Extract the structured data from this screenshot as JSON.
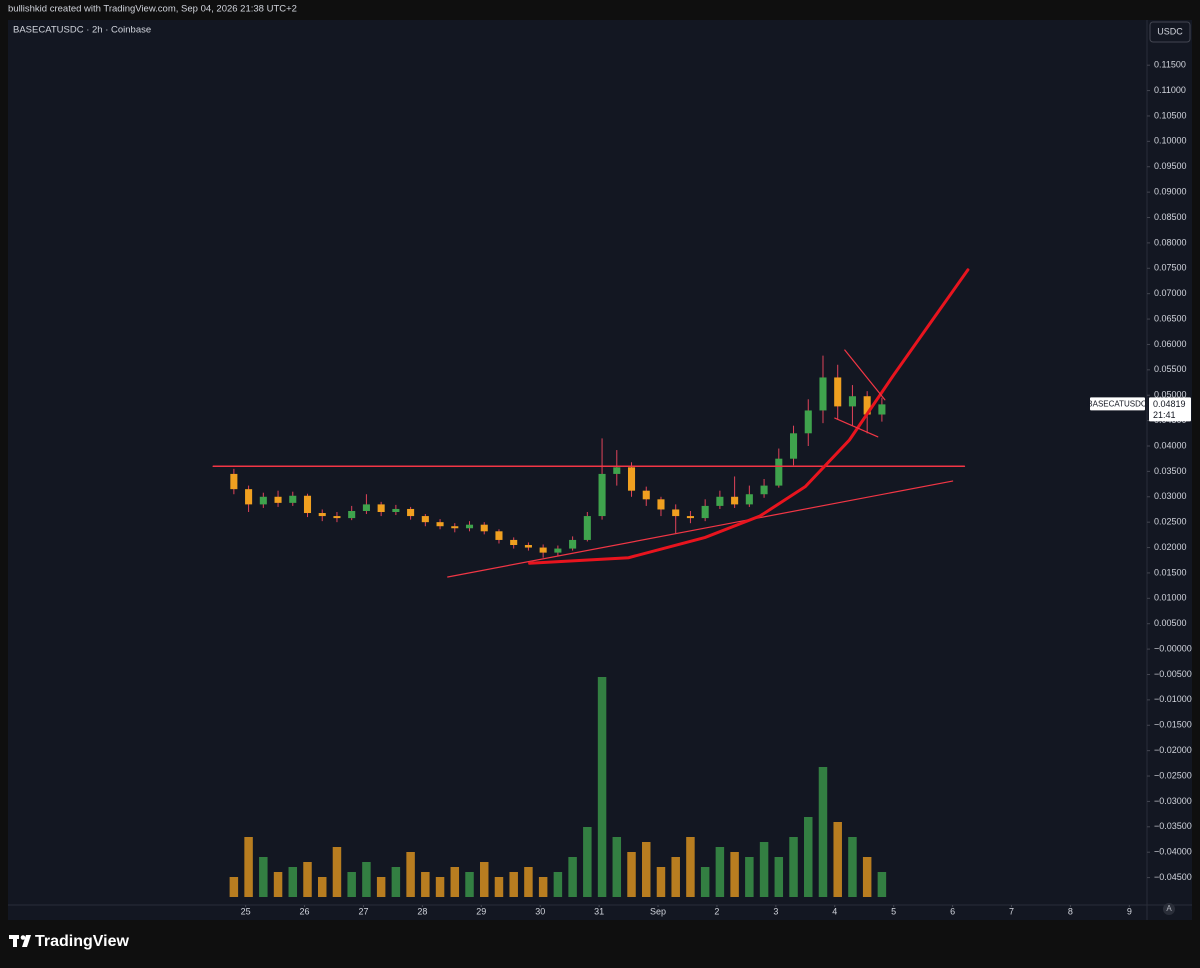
{
  "header": {
    "credit": "bullishkid created with TradingView.com, Sep 04, 2026 21:38 UTC+2"
  },
  "footer": {
    "brand": "TradingView",
    "auto_button": "A"
  },
  "chart_data": {
    "type": "candlestick",
    "title": "BASECATUSDC · 2h · Coinbase",
    "currency": "USDC",
    "up_color": "#3fa34d",
    "down_color": "#f0a020",
    "wick_color": "#e0445a",
    "x": [
      -0.2,
      0.05,
      0.3,
      0.55,
      0.8,
      1.05,
      1.3,
      1.55,
      1.8,
      2.05,
      2.3,
      2.55,
      2.8,
      3.05,
      3.3,
      3.55,
      3.8,
      4.05,
      4.3,
      4.55,
      4.8,
      5.05,
      5.3,
      5.55,
      5.8,
      6.05,
      6.3,
      6.55,
      6.8,
      7.05,
      7.3,
      7.55,
      7.8,
      8.05,
      8.3,
      8.55,
      8.8,
      9.05,
      9.3,
      9.55,
      9.8,
      10.05,
      10.3,
      10.55,
      10.8
    ],
    "open": [
      0.0345,
      0.0315,
      0.0285,
      0.03,
      0.0288,
      0.0302,
      0.0268,
      0.0262,
      0.0258,
      0.0272,
      0.0285,
      0.027,
      0.0276,
      0.0262,
      0.025,
      0.0242,
      0.0238,
      0.0245,
      0.0232,
      0.0215,
      0.0205,
      0.02,
      0.019,
      0.0198,
      0.0215,
      0.0262,
      0.0345,
      0.0358,
      0.0312,
      0.0295,
      0.0275,
      0.0262,
      0.0258,
      0.0282,
      0.03,
      0.0285,
      0.0305,
      0.0322,
      0.0375,
      0.0425,
      0.047,
      0.0535,
      0.0478,
      0.0498,
      0.0462
    ],
    "high": [
      0.0355,
      0.0322,
      0.0308,
      0.0312,
      0.031,
      0.0306,
      0.0275,
      0.027,
      0.0282,
      0.0305,
      0.029,
      0.0284,
      0.028,
      0.0266,
      0.0256,
      0.0248,
      0.0252,
      0.025,
      0.0236,
      0.022,
      0.021,
      0.0206,
      0.0204,
      0.0222,
      0.027,
      0.0415,
      0.0392,
      0.0368,
      0.032,
      0.03,
      0.0285,
      0.0272,
      0.0295,
      0.0312,
      0.034,
      0.0322,
      0.0335,
      0.0395,
      0.044,
      0.0492,
      0.0578,
      0.056,
      0.052,
      0.0508,
      0.0495
    ],
    "low": [
      0.0305,
      0.027,
      0.0278,
      0.028,
      0.0282,
      0.026,
      0.0252,
      0.025,
      0.0254,
      0.0266,
      0.0262,
      0.0264,
      0.0255,
      0.0242,
      0.0236,
      0.023,
      0.0232,
      0.0226,
      0.0208,
      0.0198,
      0.0194,
      0.018,
      0.0184,
      0.0194,
      0.0212,
      0.0255,
      0.0322,
      0.03,
      0.0282,
      0.0262,
      0.0228,
      0.0248,
      0.0252,
      0.0276,
      0.0278,
      0.028,
      0.0298,
      0.0318,
      0.0362,
      0.04,
      0.0445,
      0.0452,
      0.044,
      0.0425,
      0.0448
    ],
    "close": [
      0.0315,
      0.0285,
      0.03,
      0.0288,
      0.0302,
      0.0268,
      0.0262,
      0.0258,
      0.0272,
      0.0285,
      0.027,
      0.0276,
      0.0262,
      0.025,
      0.0242,
      0.0238,
      0.0245,
      0.0232,
      0.0215,
      0.0205,
      0.02,
      0.019,
      0.0198,
      0.0215,
      0.0262,
      0.0345,
      0.0358,
      0.0312,
      0.0295,
      0.0275,
      0.0262,
      0.0258,
      0.0282,
      0.03,
      0.0285,
      0.0305,
      0.0322,
      0.0375,
      0.0425,
      0.047,
      0.0535,
      0.0478,
      0.0498,
      0.0462,
      0.0482
    ],
    "volume": [
      20,
      60,
      40,
      25,
      30,
      35,
      20,
      50,
      25,
      35,
      20,
      30,
      45,
      25,
      20,
      30,
      25,
      35,
      20,
      25,
      30,
      20,
      25,
      40,
      70,
      220,
      60,
      45,
      55,
      30,
      40,
      60,
      30,
      50,
      45,
      40,
      55,
      40,
      60,
      80,
      130,
      75,
      60,
      40,
      25
    ],
    "volume_lim": [
      0,
      240
    ],
    "xlim": [
      -4.0,
      15.3
    ],
    "xticks": [
      {
        "value": 0,
        "label": "25"
      },
      {
        "value": 1,
        "label": "26"
      },
      {
        "value": 2,
        "label": "27"
      },
      {
        "value": 3,
        "label": "28"
      },
      {
        "value": 4,
        "label": "29"
      },
      {
        "value": 5,
        "label": "30"
      },
      {
        "value": 6,
        "label": "31"
      },
      {
        "value": 7,
        "label": "Sep"
      },
      {
        "value": 8,
        "label": "2"
      },
      {
        "value": 9,
        "label": "3"
      },
      {
        "value": 10,
        "label": "4"
      },
      {
        "value": 11,
        "label": "5"
      },
      {
        "value": 12,
        "label": "6"
      },
      {
        "value": 13,
        "label": "7"
      },
      {
        "value": 14,
        "label": "8"
      },
      {
        "value": 15,
        "label": "9"
      }
    ],
    "ylim": [
      -0.0504,
      0.1239
    ],
    "yticks": [
      {
        "value": 0.115,
        "label": "0.11500"
      },
      {
        "value": 0.11,
        "label": "0.11000"
      },
      {
        "value": 0.105,
        "label": "0.10500"
      },
      {
        "value": 0.1,
        "label": "0.10000"
      },
      {
        "value": 0.095,
        "label": "0.09500"
      },
      {
        "value": 0.09,
        "label": "0.09000"
      },
      {
        "value": 0.085,
        "label": "0.08500"
      },
      {
        "value": 0.08,
        "label": "0.08000"
      },
      {
        "value": 0.075,
        "label": "0.07500"
      },
      {
        "value": 0.07,
        "label": "0.07000"
      },
      {
        "value": 0.065,
        "label": "0.06500"
      },
      {
        "value": 0.06,
        "label": "0.06000"
      },
      {
        "value": 0.055,
        "label": "0.05500"
      },
      {
        "value": 0.05,
        "label": "0.05000"
      },
      {
        "value": 0.045,
        "label": "0.04500"
      },
      {
        "value": 0.04,
        "label": "0.04000"
      },
      {
        "value": 0.035,
        "label": "0.03500"
      },
      {
        "value": 0.03,
        "label": "0.03000"
      },
      {
        "value": 0.025,
        "label": "0.02500"
      },
      {
        "value": 0.02,
        "label": "0.02000"
      },
      {
        "value": 0.015,
        "label": "0.01500"
      },
      {
        "value": 0.01,
        "label": "0.01000"
      },
      {
        "value": 0.005,
        "label": "0.00500"
      },
      {
        "value": 0,
        "label": "−0.00000"
      },
      {
        "value": -0.005,
        "label": "−0.00500"
      },
      {
        "value": -0.01,
        "label": "−0.01000"
      },
      {
        "value": -0.015,
        "label": "−0.01500"
      },
      {
        "value": -0.02,
        "label": "−0.02000"
      },
      {
        "value": -0.025,
        "label": "−0.02500"
      },
      {
        "value": -0.03,
        "label": "−0.03000"
      },
      {
        "value": -0.035,
        "label": "−0.03500"
      },
      {
        "value": -0.04,
        "label": "−0.04000"
      },
      {
        "value": -0.045,
        "label": "−0.04500"
      }
    ],
    "last_price": 0.04819,
    "last_price_symbol": "BASECATUSDC",
    "countdown": "21:41",
    "drawings": [
      {
        "color": "#f23645",
        "width": 1.5,
        "x": [
          -0.55,
          12.2
        ],
        "y": [
          0.036,
          0.036
        ]
      },
      {
        "color": "#f23645",
        "width": 1.2,
        "x": [
          3.43,
          12.0
        ],
        "y": [
          0.0142,
          0.0331
        ]
      },
      {
        "color": "#e8141e",
        "width": 3,
        "x": [
          4.82,
          6.5,
          7.8,
          8.73,
          9.5,
          10.25,
          11.0,
          11.7,
          12.26
        ],
        "y": [
          0.0169,
          0.018,
          0.022,
          0.0262,
          0.032,
          0.0412,
          0.054,
          0.0655,
          0.0747
        ]
      },
      {
        "color": "#f23645",
        "width": 1.2,
        "x": [
          10.17,
          10.85
        ],
        "y": [
          0.0589,
          0.0491
        ]
      },
      {
        "color": "#f23645",
        "width": 1.2,
        "x": [
          10.0,
          10.73
        ],
        "y": [
          0.0455,
          0.0418
        ]
      }
    ]
  }
}
